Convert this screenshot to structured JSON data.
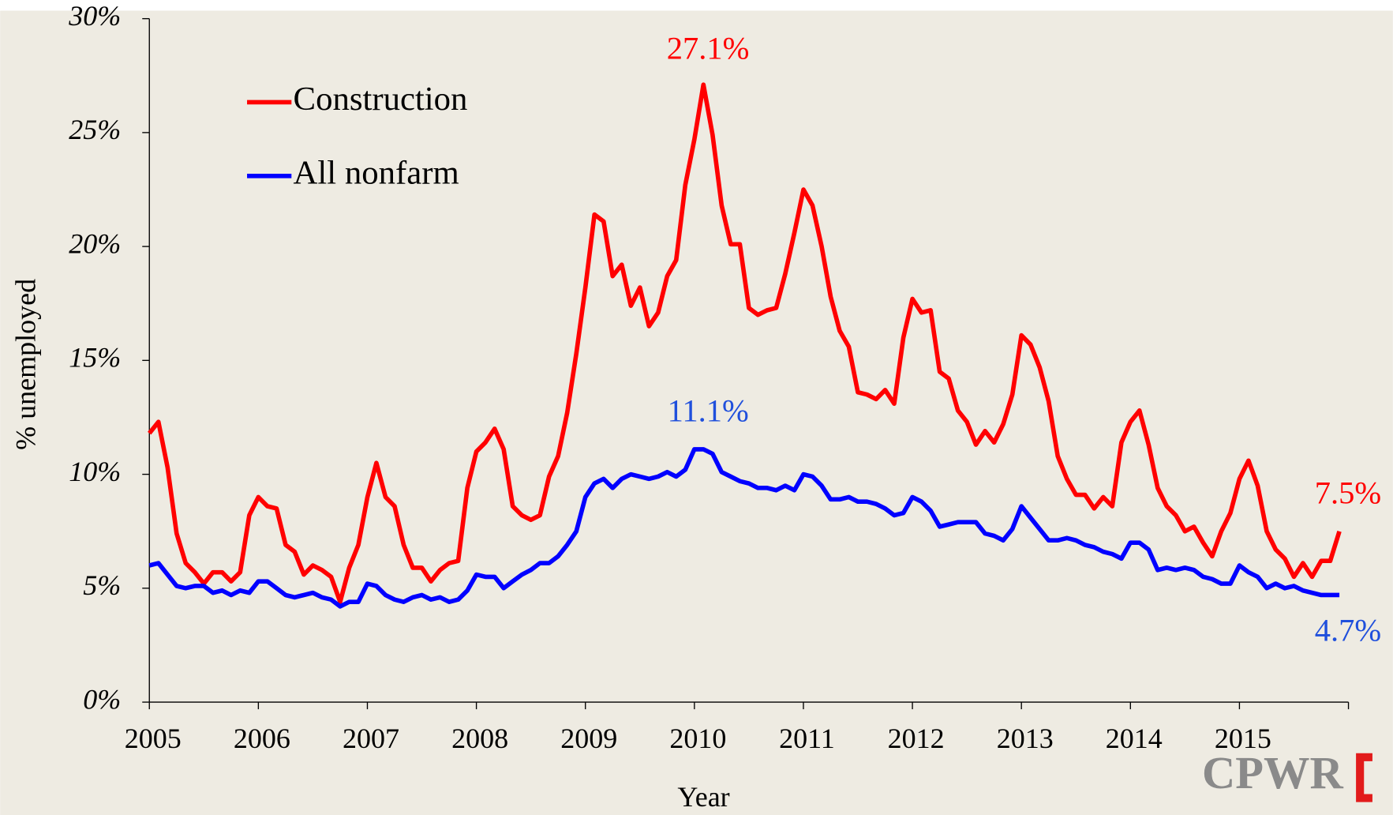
{
  "chart_data": {
    "type": "line",
    "x_label": "Year",
    "y_label": "% unemployed",
    "x": [
      2005,
      2005.083,
      2005.167,
      2005.25,
      2005.333,
      2005.417,
      2005.5,
      2005.583,
      2005.667,
      2005.75,
      2005.833,
      2005.917,
      2006,
      2006.083,
      2006.167,
      2006.25,
      2006.333,
      2006.417,
      2006.5,
      2006.583,
      2006.667,
      2006.75,
      2006.833,
      2006.917,
      2007,
      2007.083,
      2007.167,
      2007.25,
      2007.333,
      2007.417,
      2007.5,
      2007.583,
      2007.667,
      2007.75,
      2007.833,
      2007.917,
      2008,
      2008.083,
      2008.167,
      2008.25,
      2008.333,
      2008.417,
      2008.5,
      2008.583,
      2008.667,
      2008.75,
      2008.833,
      2008.917,
      2009,
      2009.083,
      2009.167,
      2009.25,
      2009.333,
      2009.417,
      2009.5,
      2009.583,
      2009.667,
      2009.75,
      2009.833,
      2009.917,
      2010,
      2010.083,
      2010.167,
      2010.25,
      2010.333,
      2010.417,
      2010.5,
      2010.583,
      2010.667,
      2010.75,
      2010.833,
      2010.917,
      2011,
      2011.083,
      2011.167,
      2011.25,
      2011.333,
      2011.417,
      2011.5,
      2011.583,
      2011.667,
      2011.75,
      2011.833,
      2011.917,
      2012,
      2012.083,
      2012.167,
      2012.25,
      2012.333,
      2012.417,
      2012.5,
      2012.583,
      2012.667,
      2012.75,
      2012.833,
      2012.917,
      2013,
      2013.083,
      2013.167,
      2013.25,
      2013.333,
      2013.417,
      2013.5,
      2013.583,
      2013.667,
      2013.75,
      2013.833,
      2013.917,
      2014,
      2014.083,
      2014.167,
      2014.25,
      2014.333,
      2014.417,
      2014.5,
      2014.583,
      2014.667,
      2014.75,
      2014.833,
      2014.917,
      2015,
      2015.083,
      2015.167,
      2015.25,
      2015.333,
      2015.417,
      2015.5,
      2015.583,
      2015.667,
      2015.75,
      2015.833,
      2015.917
    ],
    "series": [
      {
        "name": "Construction",
        "color": "#ff0000",
        "values": [
          11.8,
          12.3,
          10.3,
          7.4,
          6.1,
          5.7,
          5.2,
          5.7,
          5.7,
          5.3,
          5.7,
          8.2,
          9.0,
          8.6,
          8.5,
          6.9,
          6.6,
          5.6,
          6.0,
          5.8,
          5.5,
          4.4,
          5.9,
          6.9,
          9.0,
          10.5,
          9.0,
          8.6,
          6.9,
          5.9,
          5.9,
          5.3,
          5.8,
          6.1,
          6.2,
          9.4,
          11.0,
          11.4,
          12.0,
          11.1,
          8.6,
          8.2,
          8.0,
          8.2,
          9.9,
          10.8,
          12.7,
          15.3,
          18.2,
          21.4,
          21.1,
          18.7,
          19.2,
          17.4,
          18.2,
          16.5,
          17.1,
          18.7,
          19.4,
          22.7,
          24.7,
          27.1,
          24.9,
          21.8,
          20.1,
          20.1,
          17.3,
          17.0,
          17.2,
          17.3,
          18.8,
          20.6,
          22.5,
          21.8,
          20.0,
          17.8,
          16.3,
          15.6,
          13.6,
          13.5,
          13.3,
          13.7,
          13.1,
          16.0,
          17.7,
          17.1,
          17.2,
          14.5,
          14.2,
          12.8,
          12.3,
          11.3,
          11.9,
          11.4,
          12.2,
          13.5,
          16.1,
          15.7,
          14.7,
          13.2,
          10.8,
          9.8,
          9.1,
          9.1,
          8.5,
          9.0,
          8.6,
          11.4,
          12.3,
          12.8,
          11.3,
          9.4,
          8.6,
          8.2,
          7.5,
          7.7,
          7.0,
          6.4,
          7.5,
          8.3,
          9.8,
          10.6,
          9.5,
          7.5,
          6.7,
          6.3,
          5.5,
          6.1,
          5.5,
          6.2,
          6.2,
          7.5
        ]
      },
      {
        "name": "All nonfarm",
        "color": "#0000ff",
        "values": [
          6.0,
          6.1,
          5.6,
          5.1,
          5.0,
          5.1,
          5.1,
          4.8,
          4.9,
          4.7,
          4.9,
          4.8,
          5.3,
          5.3,
          5.0,
          4.7,
          4.6,
          4.7,
          4.8,
          4.6,
          4.5,
          4.2,
          4.4,
          4.4,
          5.2,
          5.1,
          4.7,
          4.5,
          4.4,
          4.6,
          4.7,
          4.5,
          4.6,
          4.4,
          4.5,
          4.9,
          5.6,
          5.5,
          5.5,
          5.0,
          5.3,
          5.6,
          5.8,
          6.1,
          6.1,
          6.4,
          6.9,
          7.5,
          9.0,
          9.6,
          9.8,
          9.4,
          9.8,
          10.0,
          9.9,
          9.8,
          9.9,
          10.1,
          9.9,
          10.2,
          11.1,
          11.1,
          10.9,
          10.1,
          9.9,
          9.7,
          9.6,
          9.4,
          9.4,
          9.3,
          9.5,
          9.3,
          10.0,
          9.9,
          9.5,
          8.9,
          8.9,
          9.0,
          8.8,
          8.8,
          8.7,
          8.5,
          8.2,
          8.3,
          9.0,
          8.8,
          8.4,
          7.7,
          7.8,
          7.9,
          7.9,
          7.9,
          7.4,
          7.3,
          7.1,
          7.6,
          8.6,
          8.1,
          7.6,
          7.1,
          7.1,
          7.2,
          7.1,
          6.9,
          6.8,
          6.6,
          6.5,
          6.3,
          7.0,
          7.0,
          6.7,
          5.8,
          5.9,
          5.8,
          5.9,
          5.8,
          5.5,
          5.4,
          5.2,
          5.2,
          6.0,
          5.7,
          5.5,
          5.0,
          5.2,
          5.0,
          5.1,
          4.9,
          4.8,
          4.7,
          4.7,
          4.7
        ]
      }
    ],
    "annotations": [
      {
        "text": "27.1%",
        "color": "#ff0000"
      },
      {
        "text": "11.1%",
        "color": "#1f4fdc"
      },
      {
        "text": "7.5%",
        "color": "#ff0000"
      },
      {
        "text": "4.7%",
        "color": "#1f4fdc"
      }
    ],
    "xlim": [
      2005,
      2016
    ],
    "xticks": [
      2005,
      2006,
      2007,
      2008,
      2009,
      2010,
      2011,
      2012,
      2013,
      2014,
      2015
    ],
    "ylim": [
      0,
      30
    ],
    "yticks": [
      {
        "value": 0,
        "label": "0%"
      },
      {
        "value": 5,
        "label": "5%"
      },
      {
        "value": 10,
        "label": "10%"
      },
      {
        "value": 15,
        "label": "15%"
      },
      {
        "value": 20,
        "label": "20%"
      },
      {
        "value": 25,
        "label": "25%"
      },
      {
        "value": 30,
        "label": "30%"
      }
    ],
    "grid": false,
    "legend": "upper left",
    "logo": "CPWR"
  }
}
